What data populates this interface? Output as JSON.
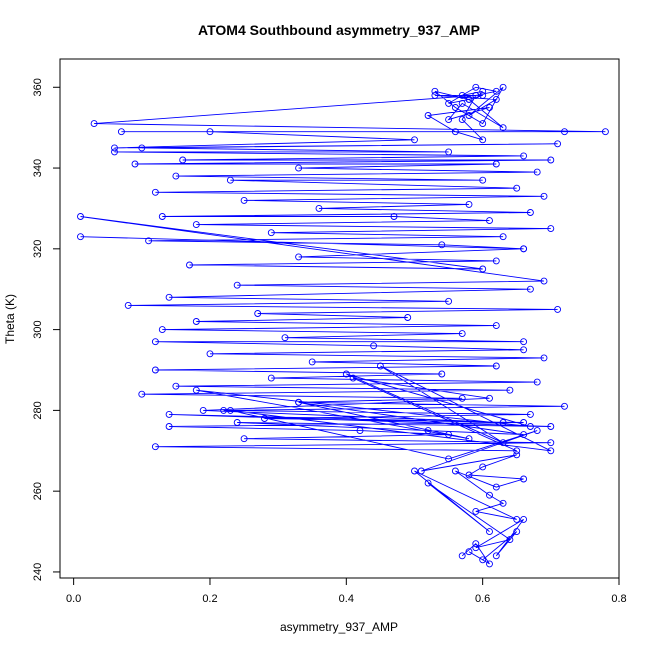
{
  "chart_data": {
    "type": "line",
    "title": "ATOM4 Southbound asymmetry_937_AMP",
    "xlabel": "asymmetry_937_AMP",
    "ylabel": "Theta (K)",
    "xlim": [
      -0.02,
      0.8
    ],
    "ylim": [
      238.5,
      367
    ],
    "xticks": [
      0.0,
      0.2,
      0.4,
      0.6,
      0.8
    ],
    "xtick_labels": [
      "0.0",
      "0.2",
      "0.4",
      "0.6",
      "0.8"
    ],
    "yticks": [
      240,
      260,
      280,
      300,
      320,
      340,
      360
    ],
    "ytick_labels": [
      "240",
      "260",
      "280",
      "300",
      "320",
      "340",
      "360"
    ],
    "grid": false,
    "style": {
      "color": "#0000ff",
      "marker": "open-circle",
      "lines": true
    },
    "series": [
      {
        "x": [
          0.6,
          0.57,
          0.59,
          0.62,
          0.59,
          0.55,
          0.58,
          0.53,
          0.56,
          0.6,
          0.63,
          0.58,
          0.62,
          0.53,
          0.6,
          0.58,
          0.63,
          0.57,
          0.55,
          0.61,
          0.52,
          0.56,
          0.6,
          0.57,
          0.59,
          0.03,
          0.78,
          0.07,
          0.72,
          0.2,
          0.5,
          0.06,
          0.71,
          0.1,
          0.55,
          0.06,
          0.66,
          0.16,
          0.7,
          0.09,
          0.62,
          0.33,
          0.68,
          0.15,
          0.6,
          0.23,
          0.65,
          0.12,
          0.69,
          0.25,
          0.58,
          0.36,
          0.67,
          0.13,
          0.47,
          0.61,
          0.18,
          0.7,
          0.29,
          0.63,
          0.11,
          0.54,
          0.66,
          0.01,
          0.66,
          0.33,
          0.62,
          0.17,
          0.6,
          0.01,
          0.69,
          0.24,
          0.67,
          0.14,
          0.55,
          0.08,
          0.71,
          0.27,
          0.49,
          0.18,
          0.62,
          0.13,
          0.57,
          0.31,
          0.66,
          0.12,
          0.44,
          0.66,
          0.2,
          0.69,
          0.35,
          0.62,
          0.12,
          0.54,
          0.29,
          0.68,
          0.15,
          0.64,
          0.1,
          0.57,
          0.33,
          0.72,
          0.22,
          0.67,
          0.28,
          0.66,
          0.14,
          0.42,
          0.55,
          0.25,
          0.7,
          0.12,
          0.65,
          0.41,
          0.61,
          0.19,
          0.63,
          0.14,
          0.7,
          0.24,
          0.52,
          0.66,
          0.33,
          0.58,
          0.18,
          0.67,
          0.4,
          0.63,
          0.45,
          0.7,
          0.23,
          0.55,
          0.68,
          0.51,
          0.65,
          0.6,
          0.58,
          0.66,
          0.62,
          0.56,
          0.61,
          0.63,
          0.59,
          0.65,
          0.5,
          0.61,
          0.52,
          0.64,
          0.59,
          0.66,
          0.62,
          0.65,
          0.6,
          0.58,
          0.61,
          0.59,
          0.57
        ],
        "y": [
          359,
          358,
          358,
          359,
          360,
          356,
          357,
          359,
          355,
          351,
          360,
          353,
          357,
          358,
          358,
          357,
          350,
          356,
          352,
          355,
          353,
          349,
          347,
          352,
          358,
          351,
          349,
          349,
          349,
          349,
          347,
          345,
          346,
          345,
          344,
          344,
          343,
          342,
          342,
          341,
          341,
          340,
          339,
          338,
          337,
          337,
          335,
          334,
          333,
          332,
          331,
          330,
          329,
          328,
          328,
          327,
          326,
          325,
          324,
          323,
          322,
          321,
          320,
          323,
          320,
          318,
          317,
          316,
          315,
          328,
          312,
          311,
          310,
          308,
          307,
          306,
          305,
          304,
          303,
          302,
          301,
          300,
          299,
          298,
          297,
          297,
          296,
          295,
          294,
          293,
          292,
          291,
          290,
          289,
          288,
          287,
          286,
          285,
          284,
          283,
          282,
          281,
          280,
          279,
          278,
          277,
          276,
          275,
          274,
          273,
          272,
          271,
          270,
          288,
          283,
          280,
          277,
          279,
          276,
          277,
          275,
          274,
          282,
          273,
          285,
          276,
          289,
          272,
          291,
          270,
          280,
          268,
          275,
          265,
          269,
          266,
          264,
          263,
          261,
          265,
          259,
          257,
          255,
          253,
          265,
          250,
          262,
          248,
          246,
          253,
          244,
          250,
          243,
          245,
          242,
          247,
          244
        ]
      }
    ]
  }
}
